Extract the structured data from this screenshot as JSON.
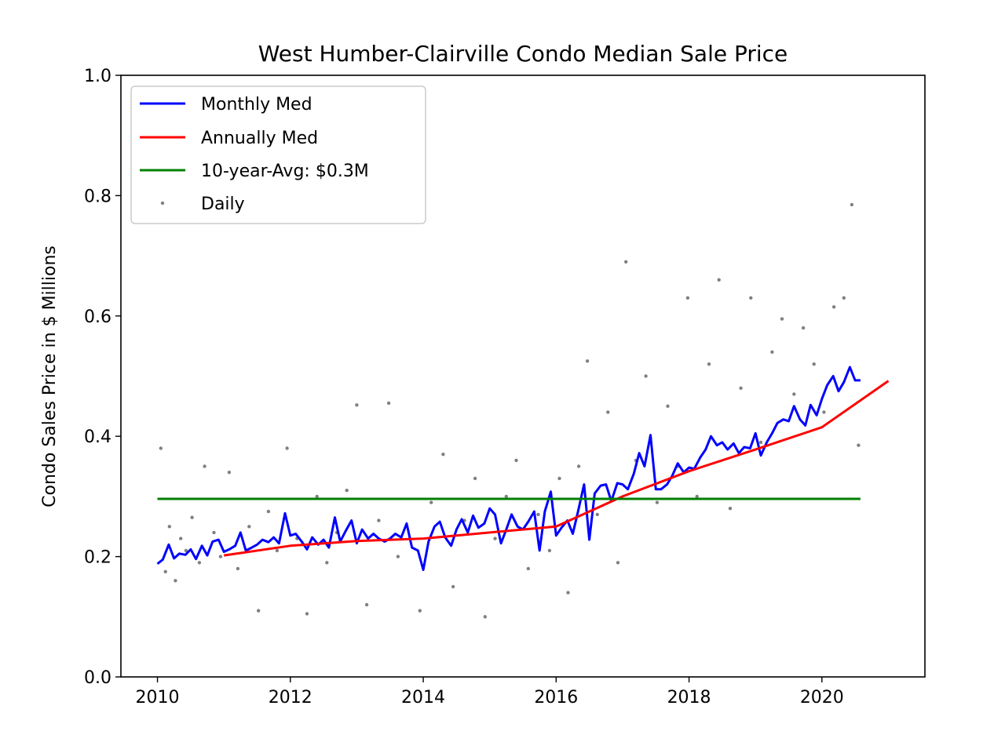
{
  "chart_data": {
    "type": "line",
    "title": "West Humber-Clairville Condo Median Sale Price",
    "xlabel": "",
    "ylabel": "Condo Sales Price in $ Millions",
    "xlim": [
      2009.45,
      2021.55
    ],
    "ylim": [
      0.0,
      1.0
    ],
    "x_ticks": [
      2010,
      2012,
      2014,
      2016,
      2018,
      2020
    ],
    "y_ticks": [
      0.0,
      0.2,
      0.4,
      0.6,
      0.8,
      1.0
    ],
    "x_tick_labels": [
      "2010",
      "2012",
      "2014",
      "2016",
      "2018",
      "2020"
    ],
    "y_tick_labels": [
      "0.0",
      "0.2",
      "0.4",
      "0.6",
      "0.8",
      "1.0"
    ],
    "legend_position": "top-left",
    "legend": [
      "Monthly Med",
      "Annually Med",
      "10-year-Avg: $0.3M",
      "Daily"
    ],
    "series": [
      {
        "name": "Monthly Med",
        "color": "#0000ff",
        "kind": "line",
        "x": [
          2010.0,
          2010.08,
          2010.17,
          2010.25,
          2010.33,
          2010.42,
          2010.5,
          2010.58,
          2010.67,
          2010.75,
          2010.83,
          2010.92,
          2011.0,
          2011.08,
          2011.17,
          2011.25,
          2011.33,
          2011.42,
          2011.5,
          2011.58,
          2011.67,
          2011.75,
          2011.83,
          2011.92,
          2012.0,
          2012.08,
          2012.17,
          2012.25,
          2012.33,
          2012.42,
          2012.5,
          2012.58,
          2012.67,
          2012.75,
          2012.83,
          2012.92,
          2013.0,
          2013.08,
          2013.17,
          2013.25,
          2013.33,
          2013.42,
          2013.5,
          2013.58,
          2013.67,
          2013.75,
          2013.83,
          2013.92,
          2014.0,
          2014.08,
          2014.17,
          2014.25,
          2014.33,
          2014.42,
          2014.5,
          2014.58,
          2014.67,
          2014.75,
          2014.83,
          2014.92,
          2015.0,
          2015.08,
          2015.17,
          2015.25,
          2015.33,
          2015.42,
          2015.5,
          2015.58,
          2015.67,
          2015.75,
          2015.83,
          2015.92,
          2016.0,
          2016.08,
          2016.17,
          2016.25,
          2016.33,
          2016.42,
          2016.5,
          2016.58,
          2016.67,
          2016.75,
          2016.83,
          2016.92,
          2017.0,
          2017.08,
          2017.17,
          2017.25,
          2017.33,
          2017.42,
          2017.5,
          2017.58,
          2017.67,
          2017.75,
          2017.83,
          2017.92,
          2018.0,
          2018.08,
          2018.17,
          2018.25,
          2018.33,
          2018.42,
          2018.5,
          2018.58,
          2018.67,
          2018.75,
          2018.83,
          2018.92,
          2019.0,
          2019.08,
          2019.17,
          2019.25,
          2019.33,
          2019.42,
          2019.5,
          2019.58,
          2019.67,
          2019.75,
          2019.83,
          2019.92,
          2020.0,
          2020.08,
          2020.17,
          2020.25,
          2020.33,
          2020.42,
          2020.5,
          2020.58
        ],
        "y": [
          0.188,
          0.195,
          0.22,
          0.197,
          0.205,
          0.203,
          0.212,
          0.196,
          0.218,
          0.202,
          0.225,
          0.228,
          0.208,
          0.212,
          0.218,
          0.24,
          0.21,
          0.215,
          0.22,
          0.228,
          0.224,
          0.232,
          0.222,
          0.272,
          0.235,
          0.238,
          0.225,
          0.212,
          0.232,
          0.22,
          0.228,
          0.215,
          0.265,
          0.225,
          0.242,
          0.26,
          0.222,
          0.245,
          0.23,
          0.238,
          0.23,
          0.225,
          0.23,
          0.238,
          0.232,
          0.255,
          0.215,
          0.21,
          0.178,
          0.225,
          0.25,
          0.258,
          0.232,
          0.218,
          0.245,
          0.262,
          0.24,
          0.268,
          0.248,
          0.255,
          0.28,
          0.27,
          0.222,
          0.245,
          0.27,
          0.25,
          0.245,
          0.258,
          0.275,
          0.21,
          0.275,
          0.308,
          0.235,
          0.248,
          0.26,
          0.238,
          0.275,
          0.32,
          0.228,
          0.305,
          0.318,
          0.32,
          0.292,
          0.322,
          0.32,
          0.312,
          0.338,
          0.372,
          0.35,
          0.402,
          0.312,
          0.312,
          0.32,
          0.335,
          0.355,
          0.34,
          0.348,
          0.346,
          0.365,
          0.378,
          0.4,
          0.385,
          0.39,
          0.378,
          0.388,
          0.372,
          0.382,
          0.38,
          0.405,
          0.368,
          0.39,
          0.405,
          0.422,
          0.428,
          0.425,
          0.45,
          0.428,
          0.418,
          0.452,
          0.435,
          0.462,
          0.485,
          0.5,
          0.475,
          0.49,
          0.515,
          0.493,
          0.493
        ]
      },
      {
        "name": "Annually Med",
        "color": "#ff0000",
        "kind": "line",
        "x": [
          2011.0,
          2012.0,
          2013.0,
          2014.0,
          2015.0,
          2016.0,
          2017.0,
          2018.0,
          2019.0,
          2020.0,
          2021.0
        ],
        "y": [
          0.202,
          0.218,
          0.226,
          0.23,
          0.24,
          0.25,
          0.3,
          0.342,
          0.378,
          0.415,
          0.492
        ]
      },
      {
        "name": "10-year-Avg: $0.3M",
        "color": "#008000",
        "kind": "line",
        "x": [
          2010.0,
          2020.58
        ],
        "y": [
          0.296,
          0.296
        ]
      },
      {
        "name": "Daily",
        "color": "#808080",
        "kind": "scatter",
        "x": [
          2010.05,
          2010.12,
          2010.18,
          2010.27,
          2010.35,
          2010.43,
          2010.52,
          2010.63,
          2010.71,
          2010.85,
          2010.95,
          2011.08,
          2011.21,
          2011.38,
          2011.52,
          2011.67,
          2011.8,
          2011.95,
          2012.1,
          2012.25,
          2012.4,
          2012.55,
          2012.7,
          2012.85,
          2013.0,
          2013.15,
          2013.33,
          2013.48,
          2013.62,
          2013.8,
          2013.95,
          2014.12,
          2014.3,
          2014.45,
          2014.62,
          2014.78,
          2014.93,
          2015.08,
          2015.25,
          2015.4,
          2015.58,
          2015.73,
          2015.9,
          2016.05,
          2016.18,
          2016.34,
          2016.47,
          2016.62,
          2016.78,
          2016.93,
          2017.05,
          2017.2,
          2017.35,
          2017.52,
          2017.68,
          2017.83,
          2017.98,
          2018.12,
          2018.3,
          2018.45,
          2018.62,
          2018.78,
          2018.93,
          2019.08,
          2019.25,
          2019.4,
          2019.58,
          2019.72,
          2019.88,
          2020.03,
          2020.18,
          2020.33,
          2020.45,
          2020.55
        ],
        "y": [
          0.38,
          0.175,
          0.25,
          0.16,
          0.23,
          0.21,
          0.265,
          0.19,
          0.35,
          0.24,
          0.2,
          0.34,
          0.18,
          0.25,
          0.11,
          0.275,
          0.21,
          0.38,
          0.23,
          0.105,
          0.3,
          0.19,
          0.24,
          0.31,
          0.452,
          0.12,
          0.26,
          0.455,
          0.2,
          0.23,
          0.11,
          0.29,
          0.37,
          0.15,
          0.26,
          0.33,
          0.1,
          0.23,
          0.3,
          0.36,
          0.18,
          0.27,
          0.21,
          0.33,
          0.14,
          0.35,
          0.525,
          0.27,
          0.44,
          0.19,
          0.69,
          0.36,
          0.5,
          0.29,
          0.45,
          0.35,
          0.63,
          0.3,
          0.52,
          0.66,
          0.28,
          0.48,
          0.63,
          0.39,
          0.54,
          0.595,
          0.47,
          0.58,
          0.52,
          0.44,
          0.615,
          0.63,
          0.785,
          0.385
        ]
      }
    ]
  }
}
